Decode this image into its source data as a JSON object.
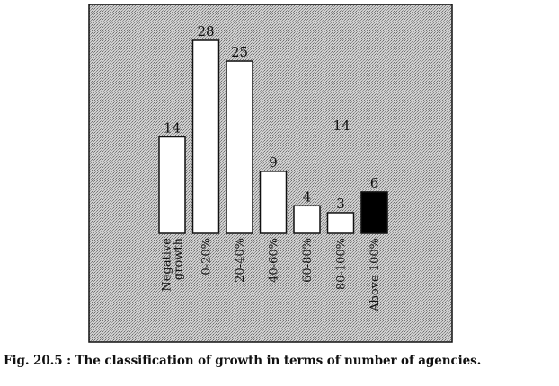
{
  "chart_data": {
    "type": "bar",
    "categories": [
      "Negative growth",
      "0-20%",
      "20-40%",
      "40-60%",
      "60-80%",
      "80-100%",
      "Above 100%"
    ],
    "category_lines": [
      [
        "Negative",
        "growth"
      ],
      [
        "0-20%"
      ],
      [
        "20-40%"
      ],
      [
        "40-60%"
      ],
      [
        "60-80%"
      ],
      [
        "80-100%"
      ],
      [
        "Above 100%"
      ]
    ],
    "values": [
      14,
      28,
      25,
      9,
      4,
      3,
      6
    ],
    "data_labels": [
      "14",
      "28",
      "25",
      "9",
      "4",
      "3",
      "6"
    ],
    "annotation": "14",
    "ylim": [
      0,
      28
    ],
    "grid": false,
    "colors": {
      "plot_background": "#bdbdbd",
      "bar_fill": "#ffffff",
      "highlight_fill": "#000000",
      "border": "#111111"
    },
    "highlight_index": 6
  },
  "caption": "Fig. 20.5 : The classification of growth in terms of number of agencies."
}
